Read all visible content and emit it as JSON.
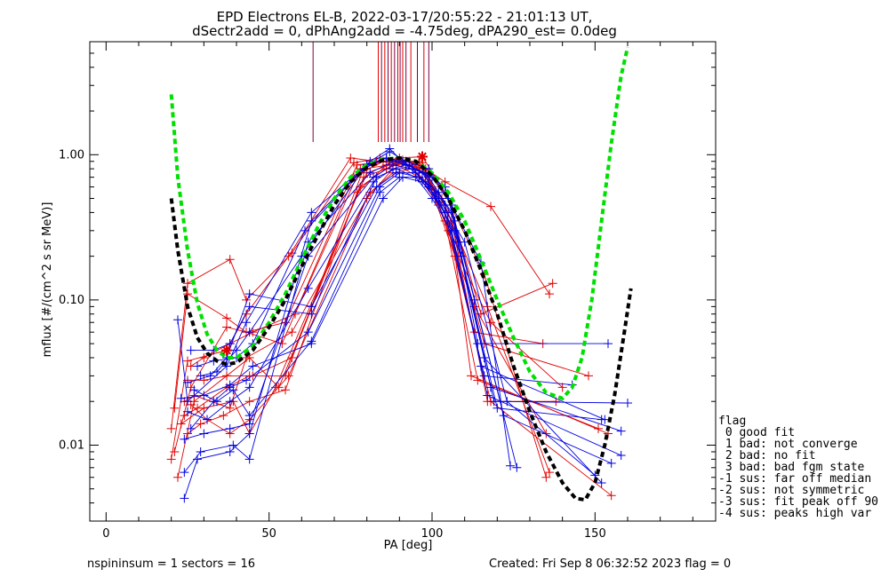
{
  "chart_data": {
    "type": "scatter",
    "title": "EPD Electrons EL-B, 2022-03-17/20:55:22 - 21:01:13 UT,",
    "subtitle": "dSectr2add = 0, dPhAng2add = -4.75deg, dPA290_est=   0.0deg",
    "xlabel": "PA [deg]",
    "ylabel": "mflux [#/(cm^2 s sr MeV)]",
    "xlim": [
      -5,
      187
    ],
    "ylim": [
      0.003,
      6.0
    ],
    "yscale": "log",
    "xticks": [
      0,
      50,
      100,
      150
    ],
    "xtick_labels": [
      "0",
      "50",
      "100",
      "150"
    ],
    "yticks": [
      0.01,
      0.1,
      1.0
    ],
    "ytick_labels": [
      "0.01",
      "0.10",
      "1.00"
    ],
    "colors": {
      "red": "#e00000",
      "blue": "#0000e0",
      "green": "#00e000",
      "black": "#000000",
      "vline": "#800040"
    },
    "vertical_markers_pa": [
      63.5,
      83.5,
      84.5,
      85.5,
      86.5,
      87.5,
      88.5,
      89.5,
      90.2,
      91,
      92,
      93.5,
      95.5,
      97.5,
      99
    ],
    "series": [
      {
        "color": "red",
        "x": [
          20,
          25,
          37,
          43,
          56,
          75,
          83,
          88,
          96,
          102,
          113,
          135
        ],
        "y": [
          0.008,
          0.038,
          0.045,
          0.08,
          0.2,
          0.95,
          0.9,
          0.88,
          0.7,
          0.45,
          0.09,
          0.012
        ]
      },
      {
        "color": "red",
        "x": [
          20,
          25,
          38,
          43,
          57,
          76,
          84,
          89,
          96,
          103,
          117,
          136
        ],
        "y": [
          0.013,
          0.13,
          0.19,
          0.1,
          0.21,
          0.88,
          0.95,
          0.9,
          0.8,
          0.5,
          0.09,
          0.0065
        ]
      },
      {
        "color": "red",
        "x": [
          21,
          25,
          37,
          43,
          54,
          76,
          85,
          90,
          97,
          103,
          116,
          135
        ],
        "y": [
          0.018,
          0.11,
          0.075,
          0.06,
          0.05,
          0.7,
          0.9,
          0.95,
          0.97,
          0.6,
          0.15,
          0.006
        ]
      },
      {
        "color": "red",
        "x": [
          21,
          26,
          37,
          43,
          55,
          77,
          85,
          91,
          96,
          104,
          118,
          136
        ],
        "y": [
          0.009,
          0.025,
          0.065,
          0.06,
          0.07,
          0.85,
          0.9,
          0.92,
          0.85,
          0.65,
          0.44,
          0.11
        ]
      },
      {
        "color": "red",
        "x": [
          22,
          27,
          37,
          44,
          53,
          78,
          86,
          92,
          97,
          105,
          115,
          137
        ],
        "y": [
          0.006,
          0.02,
          0.03,
          0.04,
          0.025,
          0.6,
          0.8,
          0.9,
          0.88,
          0.5,
          0.08,
          0.13
        ]
      },
      {
        "color": "red",
        "x": [
          24,
          28,
          37,
          44,
          55,
          79,
          87,
          92,
          98,
          105,
          113,
          134
        ],
        "y": [
          0.016,
          0.018,
          0.025,
          0.03,
          0.03,
          0.8,
          0.85,
          0.85,
          0.8,
          0.3,
          0.06,
          0.05
        ]
      },
      {
        "color": "red",
        "x": [
          25,
          30,
          37,
          45,
          57,
          79,
          86,
          91,
          96,
          105,
          116,
          148
        ],
        "y": [
          0.028,
          0.028,
          0.03,
          0.03,
          0.04,
          0.7,
          0.8,
          0.9,
          0.9,
          0.4,
          0.05,
          0.03
        ]
      },
      {
        "color": "red",
        "x": [
          26,
          31,
          38,
          44,
          56,
          80,
          88,
          92,
          98,
          107,
          118,
          155
        ],
        "y": [
          0.019,
          0.015,
          0.012,
          0.015,
          0.03,
          0.5,
          0.8,
          0.85,
          0.75,
          0.2,
          0.02,
          0.0045
        ]
      },
      {
        "color": "red",
        "x": [
          23,
          30,
          39,
          44,
          52,
          80,
          87,
          93,
          99,
          106,
          112,
          154
        ],
        "y": [
          0.014,
          0.018,
          0.02,
          0.012,
          0.025,
          0.75,
          0.85,
          0.9,
          0.7,
          0.3,
          0.03,
          0.012
        ]
      },
      {
        "color": "red",
        "x": [
          24,
          27,
          38,
          43,
          57,
          81,
          88,
          94,
          100,
          106,
          117,
          138
        ],
        "y": [
          0.02,
          0.022,
          0.018,
          0.04,
          0.06,
          0.55,
          0.75,
          0.8,
          0.6,
          0.35,
          0.02,
          0.02
        ]
      },
      {
        "color": "red",
        "x": [
          26,
          30,
          38,
          45,
          58,
          78,
          85,
          93,
          99,
          108,
          118,
          140
        ],
        "y": [
          0.035,
          0.04,
          0.05,
          0.06,
          0.08,
          0.8,
          0.9,
          0.85,
          0.7,
          0.2,
          0.07,
          0.025
        ]
      },
      {
        "color": "red",
        "x": [
          25,
          29,
          36,
          44,
          55,
          77,
          86,
          92,
          97,
          104,
          114,
          151
        ],
        "y": [
          0.012,
          0.014,
          0.016,
          0.02,
          0.024,
          0.55,
          0.85,
          0.9,
          0.8,
          0.35,
          0.028,
          0.013
        ]
      },
      {
        "color": "blue",
        "x": [
          22,
          25,
          37,
          43,
          63,
          80,
          87,
          92,
          99,
          105,
          115,
          124
        ],
        "y": [
          0.073,
          0.02,
          0.035,
          0.07,
          0.4,
          0.85,
          1.05,
          0.9,
          0.8,
          0.5,
          0.18,
          0.0072
        ]
      },
      {
        "color": "blue",
        "x": [
          24,
          28,
          38,
          44,
          63,
          81,
          87,
          92,
          98,
          104,
          113,
          126
        ],
        "y": [
          0.0043,
          0.008,
          0.009,
          0.012,
          0.35,
          0.9,
          1.1,
          0.85,
          0.75,
          0.6,
          0.1,
          0.007
        ]
      },
      {
        "color": "blue",
        "x": [
          24,
          29,
          39,
          44,
          62,
          81,
          88,
          93,
          99,
          106,
          116,
          152
        ],
        "y": [
          0.0065,
          0.009,
          0.01,
          0.008,
          0.25,
          0.75,
          0.9,
          0.85,
          0.7,
          0.4,
          0.04,
          0.0055
        ]
      },
      {
        "color": "blue",
        "x": [
          24,
          30,
          38,
          44,
          62,
          82,
          88,
          94,
          100,
          106,
          114,
          154
        ],
        "y": [
          0.011,
          0.012,
          0.013,
          0.014,
          0.2,
          0.7,
          0.85,
          0.8,
          0.7,
          0.45,
          0.05,
          0.05
        ]
      },
      {
        "color": "blue",
        "x": [
          25,
          31,
          38,
          44,
          62,
          82,
          88,
          94,
          99,
          107,
          118,
          158
        ],
        "y": [
          0.017,
          0.015,
          0.02,
          0.025,
          0.12,
          0.65,
          0.8,
          0.8,
          0.6,
          0.3,
          0.025,
          0.0125
        ]
      },
      {
        "color": "blue",
        "x": [
          25,
          32,
          37,
          44,
          63,
          83,
          89,
          95,
          101,
          108,
          119,
          160
        ],
        "y": [
          0.027,
          0.03,
          0.04,
          0.11,
          0.09,
          0.6,
          0.75,
          0.75,
          0.55,
          0.25,
          0.02,
          0.0195
        ]
      },
      {
        "color": "blue",
        "x": [
          26,
          33,
          38,
          44,
          63,
          83,
          89,
          95,
          100,
          106,
          117,
          158
        ],
        "y": [
          0.045,
          0.045,
          0.05,
          0.09,
          0.08,
          0.7,
          0.8,
          0.7,
          0.5,
          0.3,
          0.022,
          0.0085
        ]
      },
      {
        "color": "blue",
        "x": [
          26,
          33,
          38,
          43,
          62,
          84,
          90,
          96,
          101,
          109,
          120,
          152
        ],
        "y": [
          0.013,
          0.02,
          0.025,
          0.028,
          0.06,
          0.6,
          0.75,
          0.7,
          0.5,
          0.2,
          0.018,
          0.015
        ]
      },
      {
        "color": "blue",
        "x": [
          27,
          34,
          39,
          44,
          63,
          84,
          90,
          96,
          102,
          107,
          122,
          155
        ],
        "y": [
          0.024,
          0.02,
          0.024,
          0.016,
          0.052,
          0.55,
          0.7,
          0.7,
          0.55,
          0.35,
          0.016,
          0.0075
        ]
      },
      {
        "color": "blue",
        "x": [
          23,
          30,
          38,
          45,
          63,
          85,
          91,
          97,
          102,
          110,
          123,
          150
        ],
        "y": [
          0.021,
          0.022,
          0.026,
          0.035,
          0.05,
          0.5,
          0.7,
          0.65,
          0.5,
          0.25,
          0.02,
          0.0062
        ]
      },
      {
        "color": "blue",
        "x": [
          28,
          33,
          40,
          45,
          61,
          79,
          86,
          92,
          98,
          104,
          116,
          143
        ],
        "y": [
          0.035,
          0.038,
          0.04,
          0.05,
          0.3,
          0.8,
          0.95,
          0.85,
          0.65,
          0.4,
          0.03,
          0.026
        ]
      },
      {
        "color": "blue",
        "x": [
          29,
          34,
          40,
          44,
          60,
          80,
          86,
          91,
          97,
          104,
          115,
          153
        ],
        "y": [
          0.03,
          0.032,
          0.045,
          0.06,
          0.2,
          0.85,
          0.95,
          0.9,
          0.75,
          0.45,
          0.035,
          0.015
        ]
      }
    ],
    "dashed_curves": [
      {
        "color": "green",
        "x": [
          20,
          22,
          25,
          28,
          31,
          34,
          37,
          40,
          45,
          50,
          55,
          60,
          65,
          70,
          75,
          80,
          85,
          90,
          95,
          100,
          105,
          110,
          115,
          120,
          125,
          130,
          135,
          140,
          143,
          146,
          149,
          152,
          155,
          158,
          160
        ],
        "y": [
          2.6,
          0.7,
          0.22,
          0.095,
          0.058,
          0.045,
          0.04,
          0.04,
          0.048,
          0.07,
          0.11,
          0.19,
          0.32,
          0.5,
          0.7,
          0.85,
          0.93,
          0.95,
          0.9,
          0.75,
          0.55,
          0.35,
          0.19,
          0.1,
          0.055,
          0.032,
          0.023,
          0.021,
          0.025,
          0.04,
          0.1,
          0.35,
          1.2,
          3.5,
          5.5
        ]
      },
      {
        "color": "black",
        "x": [
          20,
          22,
          25,
          28,
          31,
          34,
          37,
          40,
          45,
          50,
          55,
          60,
          65,
          70,
          75,
          80,
          85,
          90,
          95,
          100,
          105,
          110,
          115,
          120,
          125,
          130,
          135,
          140,
          144,
          147,
          150,
          153,
          156,
          159,
          161
        ],
        "y": [
          0.5,
          0.22,
          0.09,
          0.055,
          0.043,
          0.038,
          0.036,
          0.037,
          0.045,
          0.065,
          0.1,
          0.17,
          0.28,
          0.45,
          0.65,
          0.82,
          0.92,
          0.95,
          0.9,
          0.72,
          0.5,
          0.3,
          0.16,
          0.08,
          0.035,
          0.017,
          0.009,
          0.0055,
          0.0043,
          0.0042,
          0.0055,
          0.01,
          0.022,
          0.06,
          0.12
        ]
      }
    ],
    "star_markers": [
      {
        "color": "red",
        "x": 97,
        "y": 0.97
      },
      {
        "color": "red",
        "x": 37,
        "y": 0.045
      }
    ]
  },
  "legend": {
    "header": "flag",
    "items": [
      " 0 good fit",
      " 1 bad: not converge",
      " 2 bad: no fit",
      " 3 bad: bad fgm state",
      "-1 sus: far off median",
      "-2 sus: not symmetric",
      "-3 sus: fit peak off 90",
      "-4 sus: peaks high var"
    ]
  },
  "footer": {
    "left": "nspininsum =  1  sectors = 16",
    "right": "Created: Fri Sep  8 06:32:52 2023   flag = 0"
  }
}
